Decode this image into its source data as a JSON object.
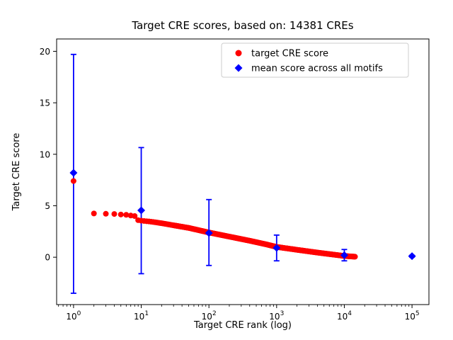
{
  "figure": {
    "title": "Target CRE scores, based on: 14381 CREs",
    "background": "#ffffff"
  },
  "chart_data": {
    "type": "scatter",
    "title": "Target CRE scores, based on: 14381 CREs",
    "xlabel": "Target CRE rank (log)",
    "ylabel": "Target CRE score",
    "x_scale": "log",
    "xlim_log10": [
      -0.25,
      5.25
    ],
    "ylim": [
      -4.6,
      21.2
    ],
    "y_ticks": [
      0,
      5,
      10,
      15,
      20
    ],
    "x_tick_exponents": [
      0,
      1,
      2,
      3,
      4,
      5
    ],
    "grid": false,
    "legend": {
      "position": "upper right",
      "border_color": "#cccccc",
      "entries": [
        {
          "label": "target CRE score",
          "marker": "circle",
          "color": "#ff0000"
        },
        {
          "label": "mean score across all motifs",
          "marker": "diamond",
          "color": "#0000ff"
        }
      ]
    },
    "series": [
      {
        "name": "target CRE score",
        "marker": "circle",
        "color": "#ff0000",
        "total_points": 14381,
        "max_rank": 14381,
        "anchor_ranks": [
          1,
          2,
          3,
          4,
          5,
          6,
          7,
          8,
          9,
          10,
          14,
          20,
          30,
          50,
          100,
          200,
          400,
          700,
          1000,
          2000,
          4000,
          7000,
          10000,
          14381
        ],
        "anchor_scores": [
          7.4,
          4.25,
          4.22,
          4.2,
          4.15,
          4.12,
          4.05,
          4.0,
          3.6,
          3.55,
          3.45,
          3.3,
          3.1,
          2.85,
          2.4,
          2.0,
          1.6,
          1.25,
          1.0,
          0.72,
          0.45,
          0.25,
          0.12,
          0.05
        ]
      },
      {
        "name": "mean score across all motifs",
        "marker": "diamond",
        "color": "#0000ff",
        "x": [
          1,
          10,
          100,
          1000,
          10000,
          100000
        ],
        "y": [
          8.2,
          4.55,
          2.35,
          0.9,
          0.2,
          0.1
        ],
        "err_lo": [
          -3.5,
          -1.6,
          -0.8,
          -0.35,
          -0.35,
          0.02
        ],
        "err_hi": [
          19.7,
          10.65,
          5.6,
          2.15,
          0.75,
          0.18
        ]
      }
    ]
  }
}
